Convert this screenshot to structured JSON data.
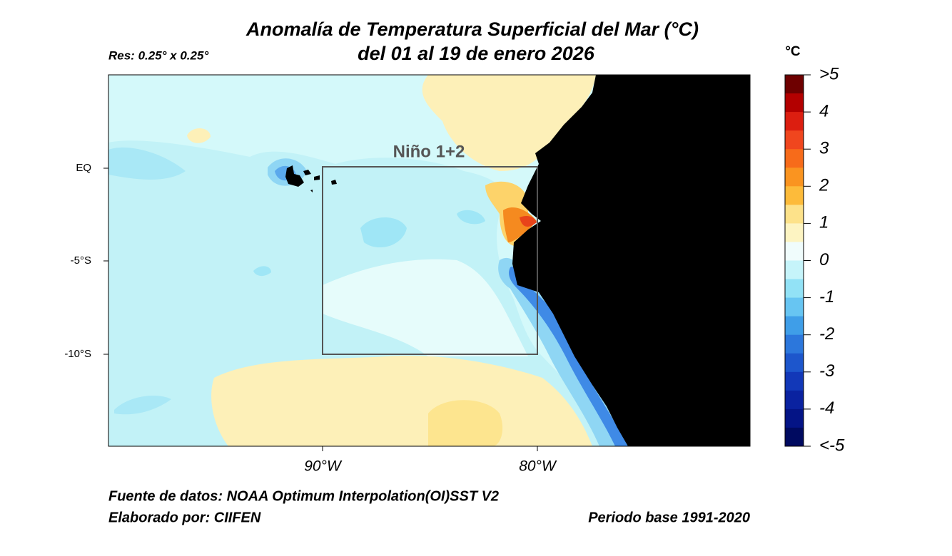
{
  "header": {
    "title": "Anomalía de Temperatura Superficial del Mar (°C)",
    "subtitle": "del 01 al 19 de enero 2026",
    "resolution": "Res: 0.25° x 0.25°"
  },
  "map": {
    "region_label": "Niño 1+2",
    "y_labels": [
      "EQ",
      "-5°S",
      "-10°S"
    ],
    "x_labels": [
      "90°W",
      "80°W"
    ]
  },
  "colorbar": {
    "unit": "°C",
    "labels": [
      ">5",
      "4",
      "3",
      "2",
      "1",
      "0",
      "-1",
      "-2",
      "-3",
      "-4",
      "<-5"
    ]
  },
  "footer": {
    "source": "Fuente de datos: NOAA Optimum Interpolation(OI)SST V2",
    "author": "Elaborado por: CIIFEN",
    "base_period": "Periodo base 1991-2020"
  }
}
